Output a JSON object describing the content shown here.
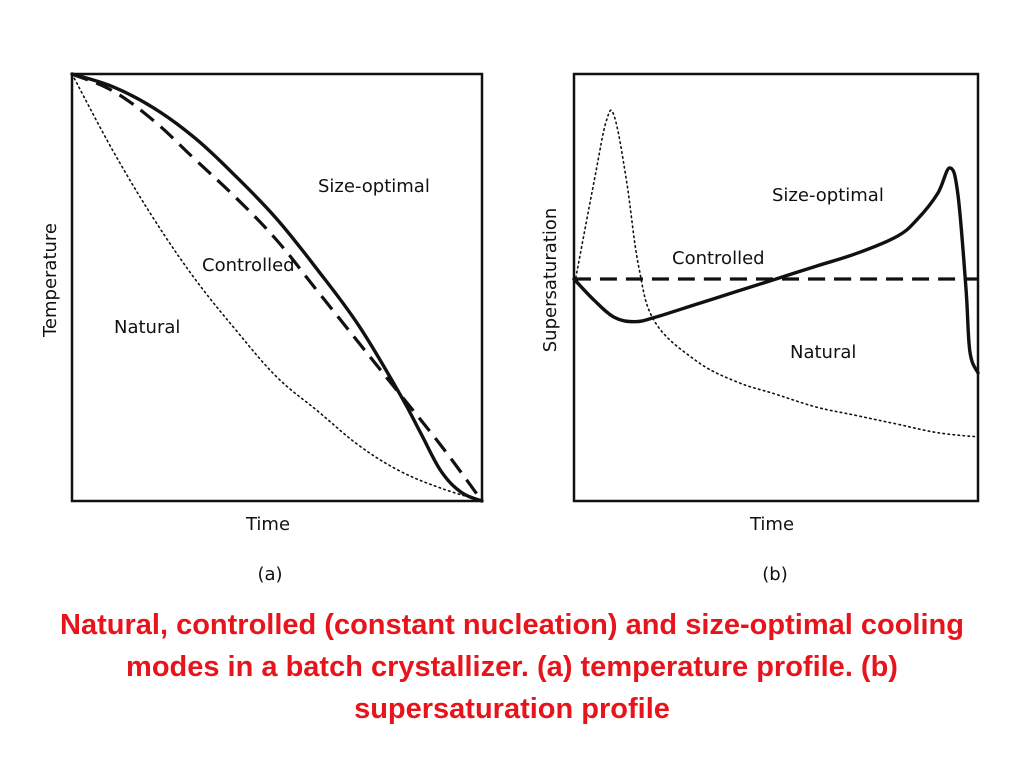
{
  "caption": "Natural, controlled (constant nucleation) and size-optimal cooling modes in a batch crystallizer. (a) temperature profile. (b) supersaturation profile",
  "chart_data": [
    {
      "type": "line",
      "panel_label": "(a)",
      "xlabel": "Time",
      "ylabel": "Temperature",
      "xlim": [
        0,
        1
      ],
      "ylim": [
        0,
        1
      ],
      "grid": false,
      "series": [
        {
          "name": "Size-optimal",
          "style": "solid",
          "x": [
            0,
            0.1,
            0.2,
            0.3,
            0.4,
            0.5,
            0.6,
            0.7,
            0.8,
            0.85,
            0.9,
            0.95,
            1.0
          ],
          "y": [
            1.0,
            0.97,
            0.92,
            0.85,
            0.76,
            0.66,
            0.54,
            0.41,
            0.25,
            0.16,
            0.07,
            0.02,
            0.0
          ]
        },
        {
          "name": "Controlled",
          "style": "dashed",
          "x": [
            0,
            0.1,
            0.2,
            0.3,
            0.4,
            0.5,
            0.6,
            0.7,
            0.8,
            0.9,
            1.0
          ],
          "y": [
            1.0,
            0.96,
            0.89,
            0.8,
            0.71,
            0.61,
            0.49,
            0.37,
            0.25,
            0.13,
            0.0
          ]
        },
        {
          "name": "Natural",
          "style": "dotted",
          "x": [
            0,
            0.1,
            0.2,
            0.3,
            0.4,
            0.5,
            0.6,
            0.7,
            0.8,
            0.9,
            1.0
          ],
          "y": [
            1.0,
            0.82,
            0.66,
            0.52,
            0.4,
            0.29,
            0.21,
            0.13,
            0.07,
            0.03,
            0.0
          ]
        }
      ]
    },
    {
      "type": "line",
      "panel_label": "(b)",
      "xlabel": "Time",
      "ylabel": "Supersaturation",
      "xlim": [
        0,
        1
      ],
      "ylim": [
        0,
        1
      ],
      "grid": false,
      "series": [
        {
          "name": "Size-optimal",
          "style": "solid",
          "x": [
            0,
            0.05,
            0.1,
            0.15,
            0.2,
            0.3,
            0.4,
            0.5,
            0.6,
            0.7,
            0.8,
            0.85,
            0.9,
            0.93,
            0.95,
            0.97,
            0.98,
            1.0
          ],
          "y": [
            0.52,
            0.47,
            0.43,
            0.42,
            0.43,
            0.46,
            0.49,
            0.52,
            0.55,
            0.58,
            0.62,
            0.66,
            0.72,
            0.78,
            0.72,
            0.5,
            0.35,
            0.3
          ]
        },
        {
          "name": "Controlled",
          "style": "dashed",
          "x": [
            0,
            1
          ],
          "y": [
            0.52,
            0.52
          ]
        },
        {
          "name": "Natural",
          "style": "dotted",
          "x": [
            0,
            0.05,
            0.08,
            0.1,
            0.13,
            0.16,
            0.2,
            0.3,
            0.4,
            0.5,
            0.6,
            0.7,
            0.8,
            0.9,
            1.0
          ],
          "y": [
            0.5,
            0.75,
            0.89,
            0.9,
            0.75,
            0.55,
            0.42,
            0.33,
            0.28,
            0.25,
            0.22,
            0.2,
            0.18,
            0.16,
            0.15
          ]
        }
      ]
    }
  ]
}
